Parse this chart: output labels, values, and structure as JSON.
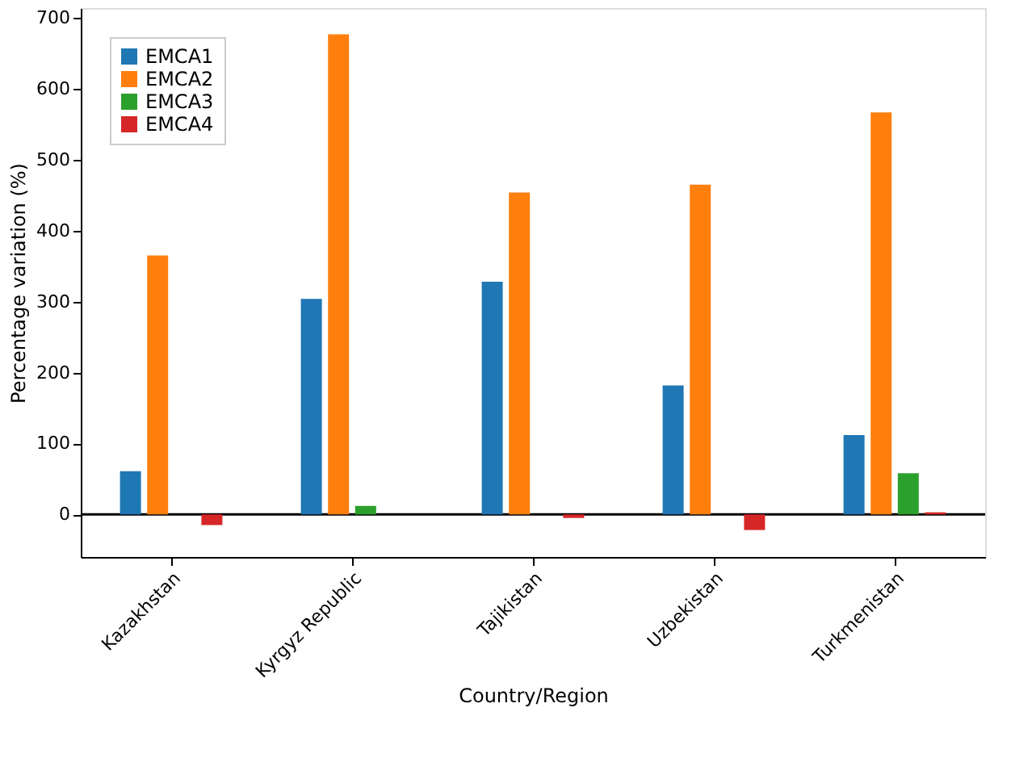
{
  "chart_data": {
    "type": "bar",
    "xlabel": "Country/Region",
    "ylabel": "Percentage variation (%)",
    "categories": [
      "Kazakhstan",
      "Kyrgyz Republic",
      "Tajikistan",
      "Uzbekistan",
      "Turkmenistan"
    ],
    "series": [
      {
        "name": "EMCA1",
        "color": "#1f77b4",
        "values": [
          61,
          304,
          328,
          182,
          112
        ]
      },
      {
        "name": "EMCA2",
        "color": "#ff7f0e",
        "values": [
          365,
          677,
          454,
          465,
          567
        ]
      },
      {
        "name": "EMCA3",
        "color": "#2ca02c",
        "values": [
          0,
          12,
          0,
          0,
          58
        ]
      },
      {
        "name": "EMCA4",
        "color": "#d62728",
        "values": [
          -15,
          0,
          -5,
          -22,
          3
        ]
      }
    ],
    "ylim": [
      -60,
      714
    ],
    "yticks": [
      0,
      100,
      200,
      300,
      400,
      500,
      600,
      700
    ],
    "ref_lines": [
      {
        "axis": "y",
        "value": 0,
        "color": "#000000"
      }
    ],
    "grid": false,
    "legend": "top left"
  }
}
